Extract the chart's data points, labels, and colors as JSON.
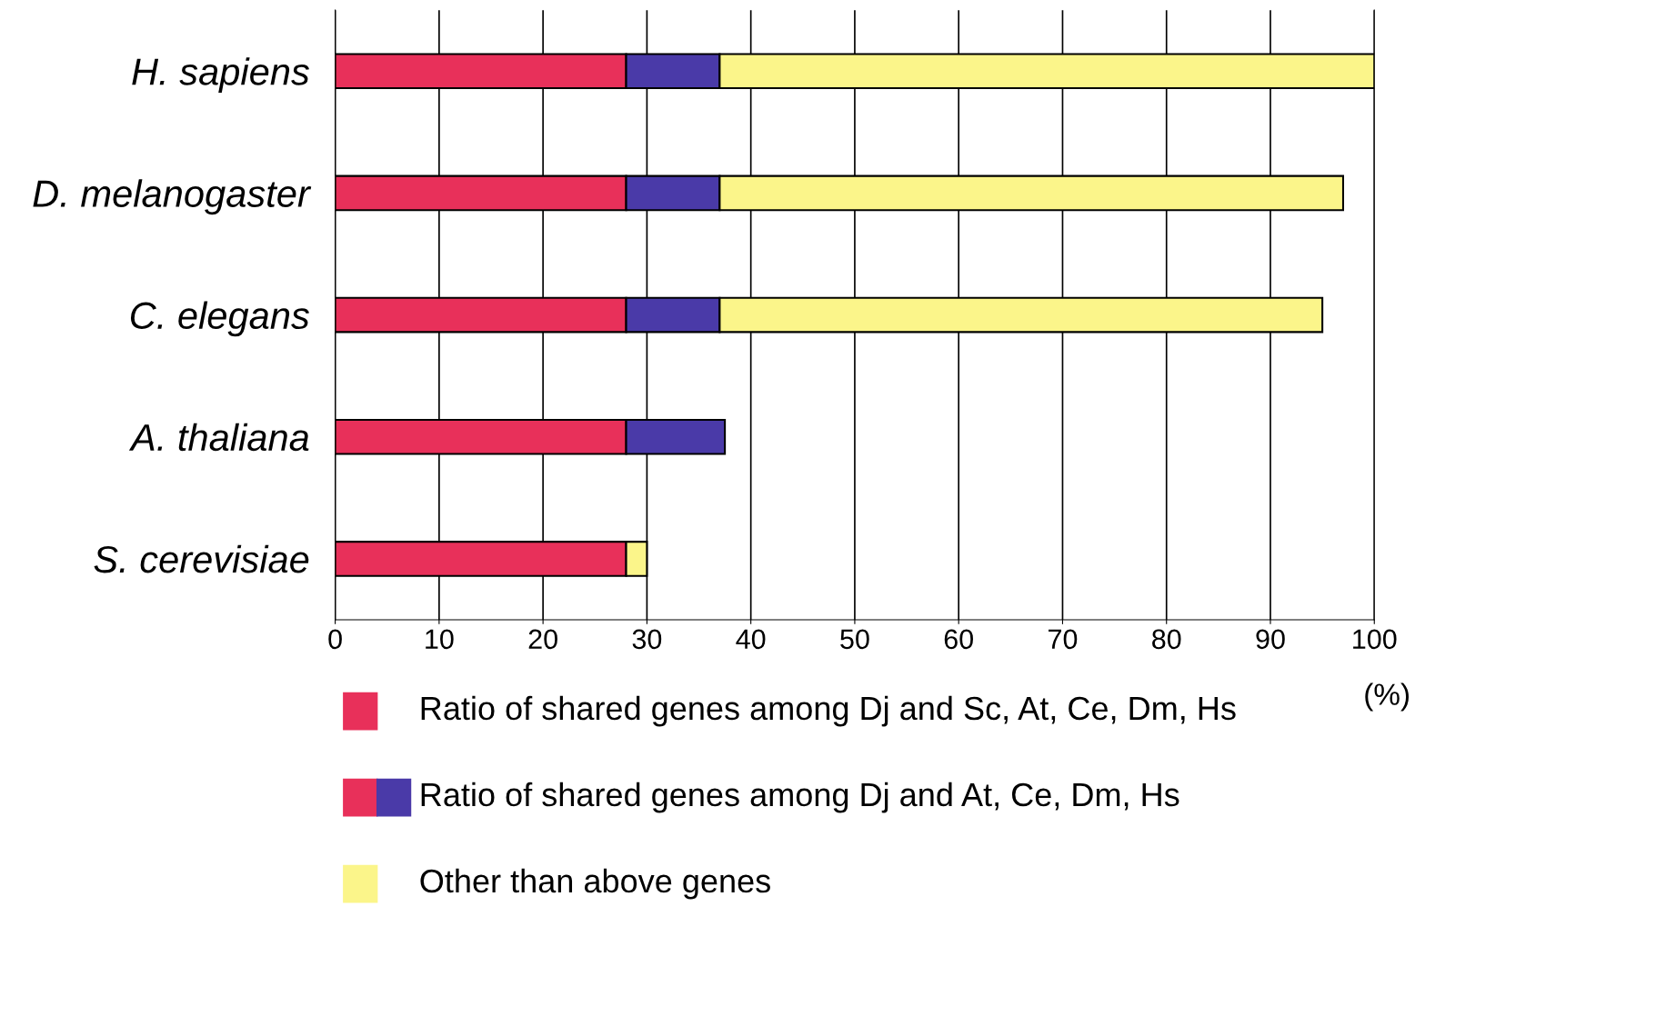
{
  "chart_data": {
    "type": "bar",
    "orientation": "horizontal",
    "stacked": true,
    "categories": [
      "H. sapiens",
      "D. melanogaster",
      "C. elegans",
      "A. thaliana",
      "S. cerevisiae"
    ],
    "series": [
      {
        "name": "Ratio of shared genes among Dj and Sc, At, Ce, Dm, Hs",
        "color": "#e8305a",
        "values": [
          28,
          28,
          28,
          28,
          28
        ]
      },
      {
        "name": "Ratio of shared genes among Dj and At, Ce, Dm, Hs",
        "color": "#4a3aa8",
        "values": [
          9,
          9,
          9,
          9.5,
          null
        ]
      },
      {
        "name": "Other than above genes",
        "color": "#fbf58a",
        "values": [
          63,
          60,
          58,
          null,
          2
        ]
      }
    ],
    "xlim": [
      0,
      100
    ],
    "xticks": [
      0,
      10,
      20,
      30,
      40,
      50,
      60,
      70,
      80,
      90,
      100
    ],
    "xlabel": "(%)",
    "grid": "x",
    "legend": "bottom"
  }
}
